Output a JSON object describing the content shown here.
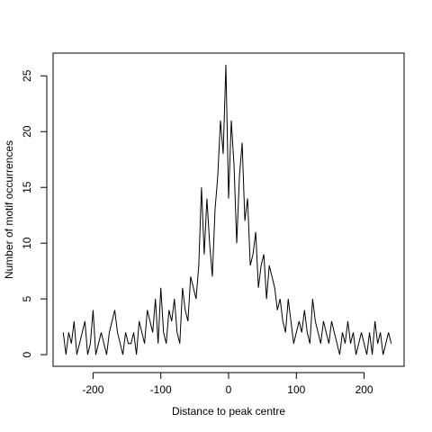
{
  "chart_data": {
    "type": "line",
    "title": "",
    "xlabel": "Distance to peak centre",
    "ylabel": "Number of motif occurrences",
    "xlim": [
      -259,
      259
    ],
    "ylim": [
      -1.04,
      27.04
    ],
    "x_ticks": [
      -200,
      -100,
      0,
      100,
      200
    ],
    "x_tick_labels": [
      "-200",
      "-100",
      "0",
      "100",
      "200"
    ],
    "y_ticks": [
      0,
      5,
      10,
      15,
      20,
      25
    ],
    "y_tick_labels": [
      "0",
      "5",
      "10",
      "15",
      "20",
      "25"
    ],
    "grid": false,
    "legend": "none",
    "line_color": "#000000",
    "series": [
      {
        "x": [
          -244,
          -240,
          -236,
          -232,
          -228,
          -224,
          -220,
          -216,
          -212,
          -208,
          -204,
          -200,
          -196,
          -192,
          -188,
          -184,
          -180,
          -176,
          -172,
          -168,
          -164,
          -160,
          -156,
          -152,
          -148,
          -144,
          -140,
          -136,
          -132,
          -128,
          -124,
          -120,
          -116,
          -112,
          -108,
          -104,
          -100,
          -96,
          -92,
          -88,
          -84,
          -80,
          -76,
          -72,
          -68,
          -64,
          -60,
          -56,
          -52,
          -48,
          -44,
          -40,
          -36,
          -32,
          -28,
          -24,
          -20,
          -16,
          -12,
          -8,
          -4,
          0,
          4,
          8,
          12,
          16,
          20,
          24,
          28,
          32,
          36,
          40,
          44,
          48,
          52,
          56,
          60,
          64,
          68,
          72,
          76,
          80,
          84,
          88,
          92,
          96,
          100,
          104,
          108,
          112,
          116,
          120,
          124,
          128,
          132,
          136,
          140,
          144,
          148,
          152,
          156,
          160,
          164,
          168,
          172,
          176,
          180,
          184,
          188,
          192,
          196,
          200,
          204,
          208,
          212,
          216,
          220,
          224,
          228,
          232,
          236,
          240
        ],
        "y": [
          2,
          0,
          2,
          1,
          3,
          0,
          1,
          2,
          3,
          0,
          1,
          4,
          0,
          1,
          2,
          1,
          0,
          2,
          3,
          4,
          2,
          1,
          0,
          2,
          1,
          1,
          2,
          0,
          3,
          2,
          1,
          4,
          3,
          2,
          5,
          1,
          6,
          2,
          1,
          4,
          3,
          5,
          2,
          1,
          6,
          4,
          3,
          7,
          6,
          5,
          8,
          15,
          9,
          14,
          10,
          7,
          13,
          16,
          21,
          18,
          26,
          14,
          21,
          17,
          10,
          16,
          19,
          12,
          14,
          8,
          9,
          11,
          6,
          8,
          9,
          5,
          8,
          7,
          6,
          4,
          5,
          3,
          2,
          5,
          3,
          1,
          2,
          3,
          2,
          4,
          2,
          1,
          5,
          3,
          2,
          1,
          3,
          2,
          1,
          3,
          2,
          1,
          0,
          2,
          1,
          3,
          1,
          2,
          0,
          1,
          2,
          1,
          0,
          2,
          0,
          3,
          1,
          2,
          0,
          1,
          2,
          1
        ]
      }
    ]
  }
}
